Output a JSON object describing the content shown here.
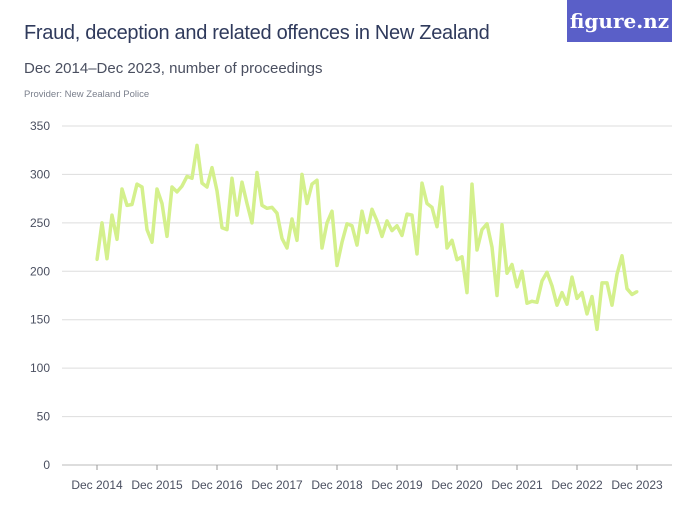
{
  "header": {
    "title": "Fraud, deception and related offences in New Zealand",
    "subtitle": "Dec 2014–Dec 2023, number of proceedings",
    "provider": "Provider: New Zealand Police",
    "logo": "figure.nz"
  },
  "chart_data": {
    "type": "line",
    "title": "Fraud, deception and related offences in New Zealand",
    "subtitle": "Dec 2014–Dec 2023, number of proceedings",
    "xlabel": "",
    "ylabel": "",
    "ylim": [
      0,
      350
    ],
    "yticks": [
      "0",
      "50",
      "100",
      "150",
      "200",
      "250",
      "300",
      "350"
    ],
    "xticks": [
      "Dec 2014",
      "Dec 2015",
      "Dec 2016",
      "Dec 2017",
      "Dec 2018",
      "Dec 2019",
      "Dec 2020",
      "Dec 2021",
      "Dec 2022",
      "Dec 2023"
    ],
    "x_range": [
      "Dec 2014",
      "Dec 2023"
    ],
    "x_frequency": "monthly",
    "grid": "horizontal",
    "color": "#d4f08c",
    "values": [
      212,
      250,
      213,
      258,
      233,
      285,
      268,
      269,
      290,
      287,
      243,
      230,
      285,
      270,
      236,
      287,
      282,
      288,
      298,
      296,
      330,
      291,
      287,
      307,
      283,
      245,
      243,
      296,
      258,
      292,
      270,
      250,
      302,
      268,
      265,
      266,
      260,
      234,
      224,
      254,
      232,
      300,
      270,
      290,
      294,
      224,
      250,
      262,
      206,
      230,
      249,
      247,
      227,
      262,
      240,
      264,
      252,
      236,
      252,
      242,
      247,
      237,
      259,
      258,
      218,
      291,
      270,
      266,
      246,
      287,
      224,
      232,
      212,
      215,
      178,
      290,
      222,
      243,
      249,
      225,
      175,
      248,
      198,
      207,
      184,
      200,
      167,
      169,
      168,
      190,
      199,
      185,
      165,
      178,
      166,
      194,
      172,
      178,
      156,
      174,
      140,
      188,
      188,
      165,
      197,
      216,
      182,
      176,
      179
    ]
  }
}
